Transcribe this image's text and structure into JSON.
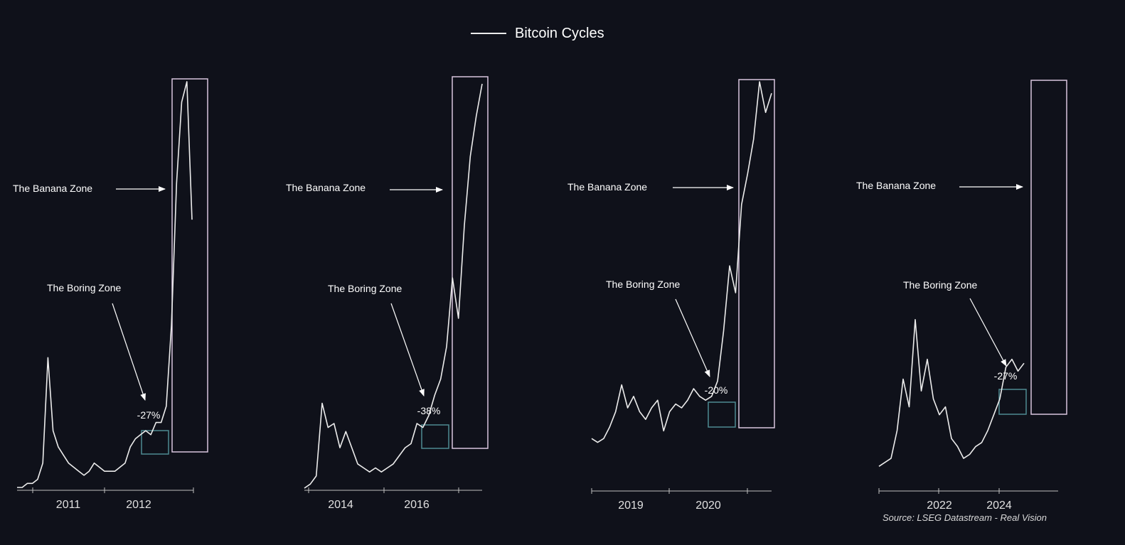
{
  "title": "Bitcoin Cycles",
  "source": "Source: LSEG Datastream - Real Vision",
  "colors": {
    "background": "#0f111a",
    "line": "#ececec",
    "text": "#ffffff",
    "banana_box": "#d8c6de",
    "boring_box": "#4f8a92",
    "axis": "#bfbfbf"
  },
  "chart_data": [
    {
      "type": "line",
      "series": [
        {
          "name": "Bitcoin Cycles",
          "values": [
            0.0,
            0.0,
            0.01,
            0.01,
            0.02,
            0.06,
            0.32,
            0.14,
            0.1,
            0.08,
            0.06,
            0.05,
            0.04,
            0.03,
            0.04,
            0.06,
            0.05,
            0.04,
            0.04,
            0.04,
            0.05,
            0.06,
            0.1,
            0.12,
            0.13,
            0.14,
            0.13,
            0.16,
            0.16,
            0.2,
            0.4,
            0.75,
            0.95,
            1.0,
            0.66
          ]
        }
      ],
      "x_ticks": [
        "2011",
        "2012"
      ],
      "annotations": {
        "banana": "The Banana Zone",
        "boring": "The Boring Zone",
        "drawdown": "-27%"
      }
    },
    {
      "type": "line",
      "series": [
        {
          "name": "Bitcoin Cycles",
          "values": [
            0.0,
            0.01,
            0.03,
            0.21,
            0.15,
            0.16,
            0.1,
            0.14,
            0.1,
            0.06,
            0.05,
            0.04,
            0.05,
            0.04,
            0.05,
            0.06,
            0.08,
            0.1,
            0.11,
            0.16,
            0.15,
            0.18,
            0.23,
            0.27,
            0.35,
            0.52,
            0.42,
            0.65,
            0.82,
            0.92,
            1.0
          ]
        }
      ],
      "x_ticks": [
        "2014",
        "2016"
      ],
      "annotations": {
        "banana": "The Banana Zone",
        "boring": "The Boring Zone",
        "drawdown": "-38%"
      }
    },
    {
      "type": "line",
      "series": [
        {
          "name": "Bitcoin Cycles",
          "values": [
            0.07,
            0.06,
            0.07,
            0.1,
            0.14,
            0.21,
            0.15,
            0.18,
            0.14,
            0.12,
            0.15,
            0.17,
            0.09,
            0.14,
            0.16,
            0.15,
            0.17,
            0.2,
            0.18,
            0.17,
            0.18,
            0.22,
            0.35,
            0.52,
            0.45,
            0.68,
            0.76,
            0.85,
            1.0,
            0.92,
            0.97
          ]
        }
      ],
      "x_ticks": [
        "2019",
        "2020"
      ],
      "annotations": {
        "banana": "The Banana Zone",
        "boring": "The Boring Zone",
        "drawdown": "-20%"
      }
    },
    {
      "type": "line",
      "series": [
        {
          "name": "Bitcoin Cycles",
          "values": [
            0.03,
            0.04,
            0.05,
            0.12,
            0.25,
            0.18,
            0.4,
            0.22,
            0.3,
            0.2,
            0.16,
            0.18,
            0.1,
            0.08,
            0.05,
            0.06,
            0.08,
            0.09,
            0.12,
            0.16,
            0.2,
            0.28,
            0.3,
            0.27,
            0.29
          ]
        }
      ],
      "x_ticks": [
        "2022",
        "2024"
      ],
      "annotations": {
        "banana": "The Banana Zone",
        "boring": "The Boring Zone",
        "drawdown": "-27%"
      }
    }
  ]
}
